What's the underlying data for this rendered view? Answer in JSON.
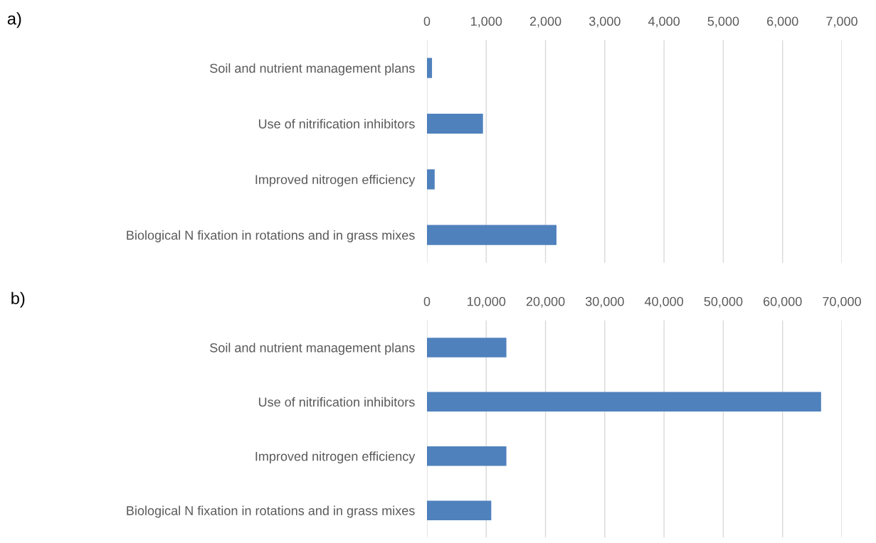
{
  "chart_data": [
    {
      "type": "bar",
      "orientation": "horizontal",
      "annotations": [
        "a)"
      ],
      "categories": [
        "Soil and nutrient management plans",
        "Use of nitrification inhibitors",
        "Improved nitrogen efficiency",
        "Biological N fixation in rotations and in grass mixes"
      ],
      "values": [
        85,
        945,
        130,
        2185
      ],
      "color": "#4f81bd",
      "xlim": [
        0,
        7000
      ],
      "xticks": [
        {
          "value": 0,
          "label": "0"
        },
        {
          "value": 1000,
          "label": "1,000"
        },
        {
          "value": 2000,
          "label": "2,000"
        },
        {
          "value": 3000,
          "label": "3,000"
        },
        {
          "value": 4000,
          "label": "4,000"
        },
        {
          "value": 5000,
          "label": "5,000"
        },
        {
          "value": 6000,
          "label": "6,000"
        },
        {
          "value": 7000,
          "label": "7,000"
        }
      ],
      "grid": "x",
      "legend": false
    },
    {
      "type": "bar",
      "orientation": "horizontal",
      "annotations": [
        "b)"
      ],
      "categories": [
        "Soil and nutrient management plans",
        "Use of nitrification inhibitors",
        "Improved nitrogen efficiency",
        "Biological N fixation in rotations and in grass mixes"
      ],
      "values": [
        13400,
        66500,
        13400,
        10850
      ],
      "color": "#4f81bd",
      "xlim": [
        0,
        70000
      ],
      "xticks": [
        {
          "value": 0,
          "label": "0"
        },
        {
          "value": 10000,
          "label": "10,000"
        },
        {
          "value": 20000,
          "label": "20,000"
        },
        {
          "value": 30000,
          "label": "30,000"
        },
        {
          "value": 40000,
          "label": "40,000"
        },
        {
          "value": 50000,
          "label": "50,000"
        },
        {
          "value": 60000,
          "label": "60,000"
        },
        {
          "value": 70000,
          "label": "70,000"
        }
      ],
      "grid": "x",
      "legend": false
    }
  ]
}
